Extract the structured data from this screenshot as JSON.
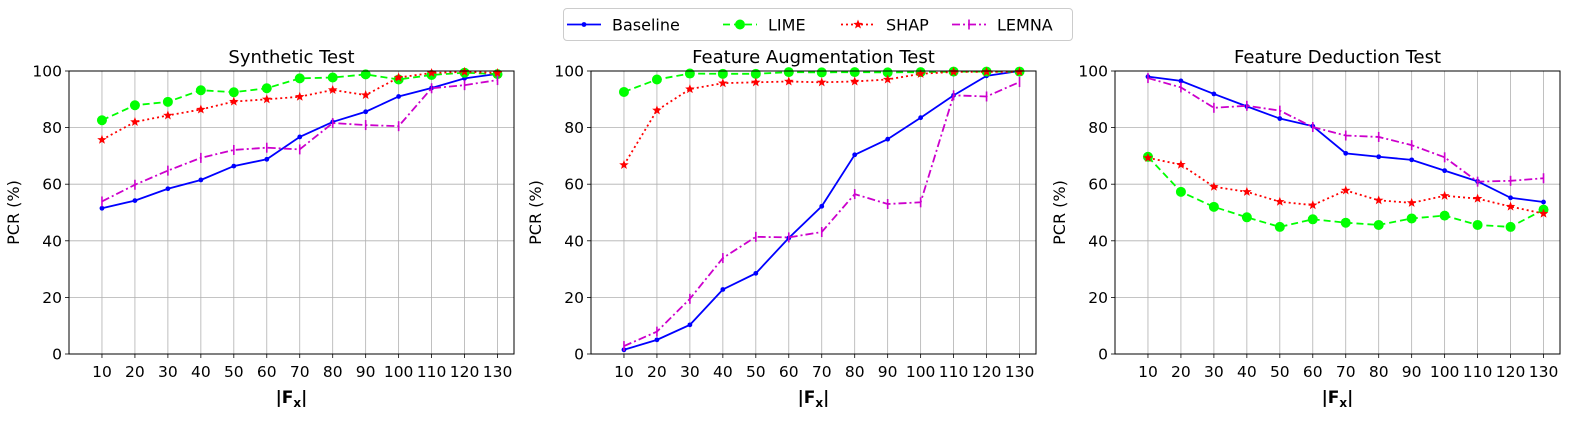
{
  "legend": {
    "placement": "top-center",
    "entries": [
      "Baseline",
      "LIME",
      "SHAP",
      "LEMNA"
    ]
  },
  "chart_data": [
    {
      "type": "line",
      "title": "Synthetic Test",
      "xlabel": "|F",
      "xlabel_sub": "x",
      "xlabel_end": "|",
      "ylabel": "PCR (%)",
      "ylim": [
        0,
        100
      ],
      "xlim": [
        0,
        135
      ],
      "yticks": [
        0,
        20,
        40,
        60,
        80,
        100
      ],
      "grid": true,
      "x": [
        10,
        20,
        30,
        40,
        50,
        60,
        70,
        80,
        90,
        100,
        110,
        120,
        130
      ],
      "series": [
        {
          "name": "Baseline",
          "color": "#0000ff",
          "style": "solid",
          "marker": "dot",
          "values": [
            51.5,
            54.2,
            58.4,
            61.5,
            66.4,
            68.8,
            76.7,
            82.0,
            85.6,
            91.0,
            94.0,
            97.4,
            99.0
          ]
        },
        {
          "name": "LIME",
          "color": "#00ff00",
          "style": "dashed",
          "marker": "circle",
          "values": [
            82.6,
            87.9,
            89.1,
            93.2,
            92.5,
            93.9,
            97.4,
            97.7,
            98.8,
            97.0,
            98.6,
            99.4,
            98.9
          ]
        },
        {
          "name": "SHAP",
          "color": "#ff0000",
          "style": "dotted",
          "marker": "star",
          "values": [
            75.7,
            82.0,
            84.3,
            86.4,
            89.2,
            90.0,
            90.9,
            93.3,
            91.5,
            97.7,
            99.3,
            99.7,
            99.3
          ]
        },
        {
          "name": "LEMNA",
          "color": "#cc00cc",
          "style": "dashdot",
          "marker": "vline",
          "values": [
            53.9,
            59.8,
            64.8,
            69.3,
            72.1,
            72.9,
            72.3,
            81.6,
            80.9,
            80.5,
            93.9,
            95.0,
            96.8
          ]
        }
      ]
    },
    {
      "type": "line",
      "title": "Feature Augmentation Test",
      "xlabel": "|F",
      "xlabel_sub": "x",
      "xlabel_end": "|",
      "ylabel": "PCR (%)",
      "ylim": [
        0,
        100
      ],
      "xlim": [
        0,
        135
      ],
      "yticks": [
        0,
        20,
        40,
        60,
        80,
        100
      ],
      "grid": true,
      "x": [
        10,
        20,
        30,
        40,
        50,
        60,
        70,
        80,
        90,
        100,
        110,
        120,
        130
      ],
      "series": [
        {
          "name": "Baseline",
          "color": "#0000ff",
          "style": "solid",
          "marker": "dot",
          "values": [
            1.5,
            5.0,
            10.3,
            22.8,
            28.5,
            41.0,
            52.2,
            70.4,
            75.9,
            83.5,
            91.4,
            98.3,
            100.0
          ]
        },
        {
          "name": "LIME",
          "color": "#00ff00",
          "style": "dashed",
          "marker": "circle",
          "values": [
            92.6,
            97.0,
            99.1,
            99.0,
            99.0,
            99.6,
            99.5,
            99.6,
            99.5,
            99.6,
            99.8,
            99.8,
            99.8
          ]
        },
        {
          "name": "SHAP",
          "color": "#ff0000",
          "style": "dotted",
          "marker": "star",
          "values": [
            66.8,
            86.1,
            93.6,
            95.7,
            96.0,
            96.3,
            96.0,
            96.3,
            97.0,
            99.0,
            99.7,
            99.7,
            99.7
          ]
        },
        {
          "name": "LEMNA",
          "color": "#cc00cc",
          "style": "dashdot",
          "marker": "vline",
          "values": [
            2.8,
            7.9,
            19.5,
            33.9,
            41.4,
            41.2,
            43.1,
            56.5,
            53.0,
            53.6,
            91.4,
            91.0,
            96.1
          ]
        }
      ]
    },
    {
      "type": "line",
      "title": "Feature Deduction Test",
      "xlabel": "|F",
      "xlabel_sub": "x",
      "xlabel_end": "|",
      "ylabel": "PCR (%)",
      "ylim": [
        0,
        100
      ],
      "xlim": [
        0,
        135
      ],
      "yticks": [
        0,
        20,
        40,
        60,
        80,
        100
      ],
      "grid": true,
      "x": [
        10,
        20,
        30,
        40,
        50,
        60,
        70,
        80,
        90,
        100,
        110,
        120,
        130
      ],
      "series": [
        {
          "name": "Baseline",
          "color": "#0000ff",
          "style": "solid",
          "marker": "dot",
          "values": [
            98.0,
            96.5,
            91.9,
            87.5,
            83.2,
            80.5,
            70.9,
            69.7,
            68.6,
            64.8,
            61.0,
            55.2,
            53.7
          ]
        },
        {
          "name": "LIME",
          "color": "#00ff00",
          "style": "dashed",
          "marker": "circle",
          "values": [
            69.7,
            57.3,
            52.0,
            48.3,
            44.9,
            47.6,
            46.4,
            45.6,
            47.9,
            48.9,
            45.6,
            44.9,
            51.0
          ]
        },
        {
          "name": "SHAP",
          "color": "#ff0000",
          "style": "dotted",
          "marker": "star",
          "values": [
            69.3,
            66.9,
            59.1,
            57.3,
            53.8,
            52.6,
            57.8,
            54.3,
            53.4,
            55.9,
            54.9,
            52.1,
            49.6
          ]
        },
        {
          "name": "LEMNA",
          "color": "#cc00cc",
          "style": "dashdot",
          "marker": "vline",
          "values": [
            97.5,
            94.2,
            87.0,
            87.7,
            86.0,
            80.2,
            77.2,
            76.7,
            73.8,
            69.5,
            60.9,
            61.2,
            62.1
          ]
        }
      ]
    }
  ]
}
